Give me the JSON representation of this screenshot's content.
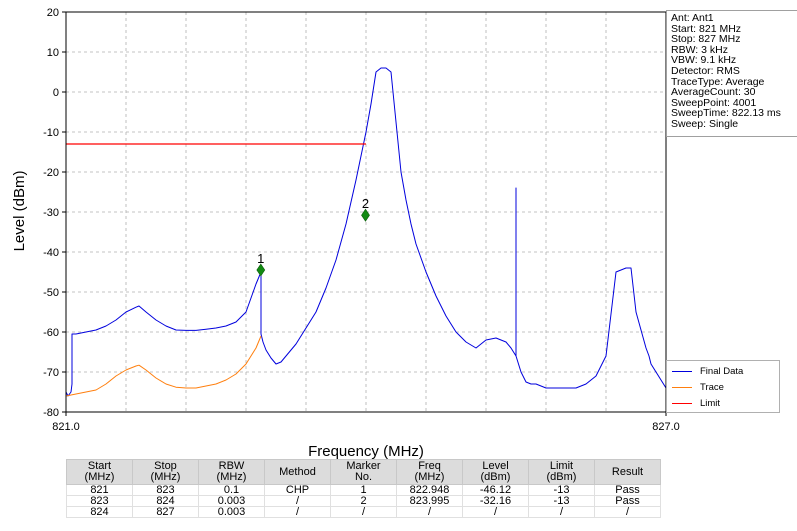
{
  "chart_data": {
    "type": "line",
    "xlabel": "Frequency (MHz)",
    "ylabel": "Level (dBm)",
    "xlim": [
      821.0,
      827.0
    ],
    "ylim": [
      -80,
      20
    ],
    "x_tick_labels": [
      "821.0",
      "827.0"
    ],
    "y_ticks": [
      20,
      10,
      0,
      -10,
      -20,
      -30,
      -40,
      -50,
      -60,
      -70,
      -80
    ],
    "grid": true,
    "legend_position": "lower-right",
    "series": [
      {
        "name": "Final Data",
        "color": "#0000dd",
        "x": [
          821.0,
          821.02,
          821.05,
          821.06,
          821.06,
          821.1,
          821.2,
          821.3,
          821.4,
          821.5,
          821.6,
          821.7,
          821.73,
          821.8,
          821.9,
          822.0,
          822.1,
          822.2,
          822.3,
          822.4,
          822.5,
          822.6,
          822.7,
          822.8,
          822.9,
          822.95,
          822.95,
          822.97,
          823.0,
          823.05,
          823.1,
          823.15,
          823.2,
          823.3,
          823.4,
          823.5,
          823.6,
          823.7,
          823.8,
          823.9,
          824.0,
          824.05,
          824.1,
          824.15,
          824.2,
          824.25,
          824.27,
          824.29,
          824.31,
          824.33,
          824.35,
          824.4,
          824.45,
          824.5,
          824.6,
          824.7,
          824.8,
          824.9,
          825.0,
          825.1,
          825.2,
          825.3,
          825.4,
          825.45,
          825.5,
          825.5,
          825.5,
          825.55,
          825.6,
          825.65,
          825.7,
          825.75,
          825.8,
          825.9,
          826.0,
          826.1,
          826.2,
          826.3,
          826.4,
          826.5,
          826.6,
          826.62,
          826.65,
          826.7,
          826.8,
          826.83,
          826.85,
          826.9,
          826.95,
          827.0
        ],
        "y": [
          -75,
          -76,
          -75,
          -73,
          -60.5,
          -60.5,
          -60,
          -59.5,
          -58.5,
          -57,
          -55,
          -53.8,
          -53.5,
          -55,
          -57,
          -58.5,
          -59.5,
          -59.6,
          -59.6,
          -59.3,
          -59,
          -58.5,
          -57.5,
          -55,
          -48,
          -45,
          -60.5,
          -62.5,
          -64.5,
          -66.5,
          -68,
          -67.5,
          -66,
          -63,
          -59,
          -55,
          -49,
          -42,
          -33,
          -22,
          -10,
          -3,
          5,
          6,
          6,
          5,
          0,
          -5,
          -10,
          -15,
          -20,
          -27,
          -33,
          -38,
          -45,
          -51,
          -56,
          -60,
          -62.5,
          -64,
          -62,
          -61.5,
          -62.5,
          -64,
          -66,
          -24,
          -66,
          -70,
          -72.5,
          -73,
          -73,
          -73.5,
          -74,
          -74,
          -74,
          -74,
          -73,
          -71,
          -66,
          -45,
          -44,
          -44,
          -44,
          -55,
          -64,
          -66,
          -68,
          -70,
          -72,
          -74
        ]
      },
      {
        "name": "Trace",
        "color": "#ff7f0e",
        "x": [
          821.0,
          821.1,
          821.2,
          821.3,
          821.4,
          821.5,
          821.6,
          821.7,
          821.73,
          821.8,
          821.9,
          822.0,
          822.1,
          822.2,
          822.3,
          822.4,
          822.5,
          822.6,
          822.7,
          822.8,
          822.9,
          822.95
        ],
        "y": [
          -76,
          -75.5,
          -75,
          -74.5,
          -73,
          -71,
          -69.5,
          -68.5,
          -68.3,
          -69.5,
          -71.5,
          -73,
          -73.8,
          -74,
          -74,
          -73.5,
          -73,
          -72,
          -70.5,
          -68,
          -64,
          -61
        ]
      },
      {
        "name": "Limit",
        "color": "#ff0000",
        "x": [
          821.0,
          824.0
        ],
        "y": [
          -13,
          -13
        ]
      }
    ],
    "markers": [
      {
        "label": "1",
        "x": 822.948,
        "y": -44.5
      },
      {
        "label": "2",
        "x": 823.995,
        "y": -30.8
      }
    ]
  },
  "info_lines": [
    "Ant: Ant1",
    "Start: 821 MHz",
    "Stop: 827 MHz",
    "RBW: 3 kHz",
    "VBW: 9.1 kHz",
    "Detector: RMS",
    "TraceType: Average",
    "AverageCount: 30",
    "SweepPoint: 4001",
    "SweepTime: 822.13 ms",
    "Sweep: Single"
  ],
  "results_table": {
    "headers": [
      "Start\n(MHz)",
      "Stop\n(MHz)",
      "RBW\n(MHz)",
      "Method",
      "Marker\nNo.",
      "Freq\n(MHz)",
      "Level\n(dBm)",
      "Limit\n(dBm)",
      "Result"
    ],
    "rows": [
      [
        "821",
        "823",
        "0.1",
        "CHP",
        "1",
        "822.948",
        "-46.12",
        "-13",
        "Pass"
      ],
      [
        "823",
        "824",
        "0.003",
        "/",
        "2",
        "823.995",
        "-32.16",
        "-13",
        "Pass"
      ],
      [
        "824",
        "827",
        "0.003",
        "/",
        "/",
        "/",
        "/",
        "/",
        "/"
      ]
    ]
  }
}
